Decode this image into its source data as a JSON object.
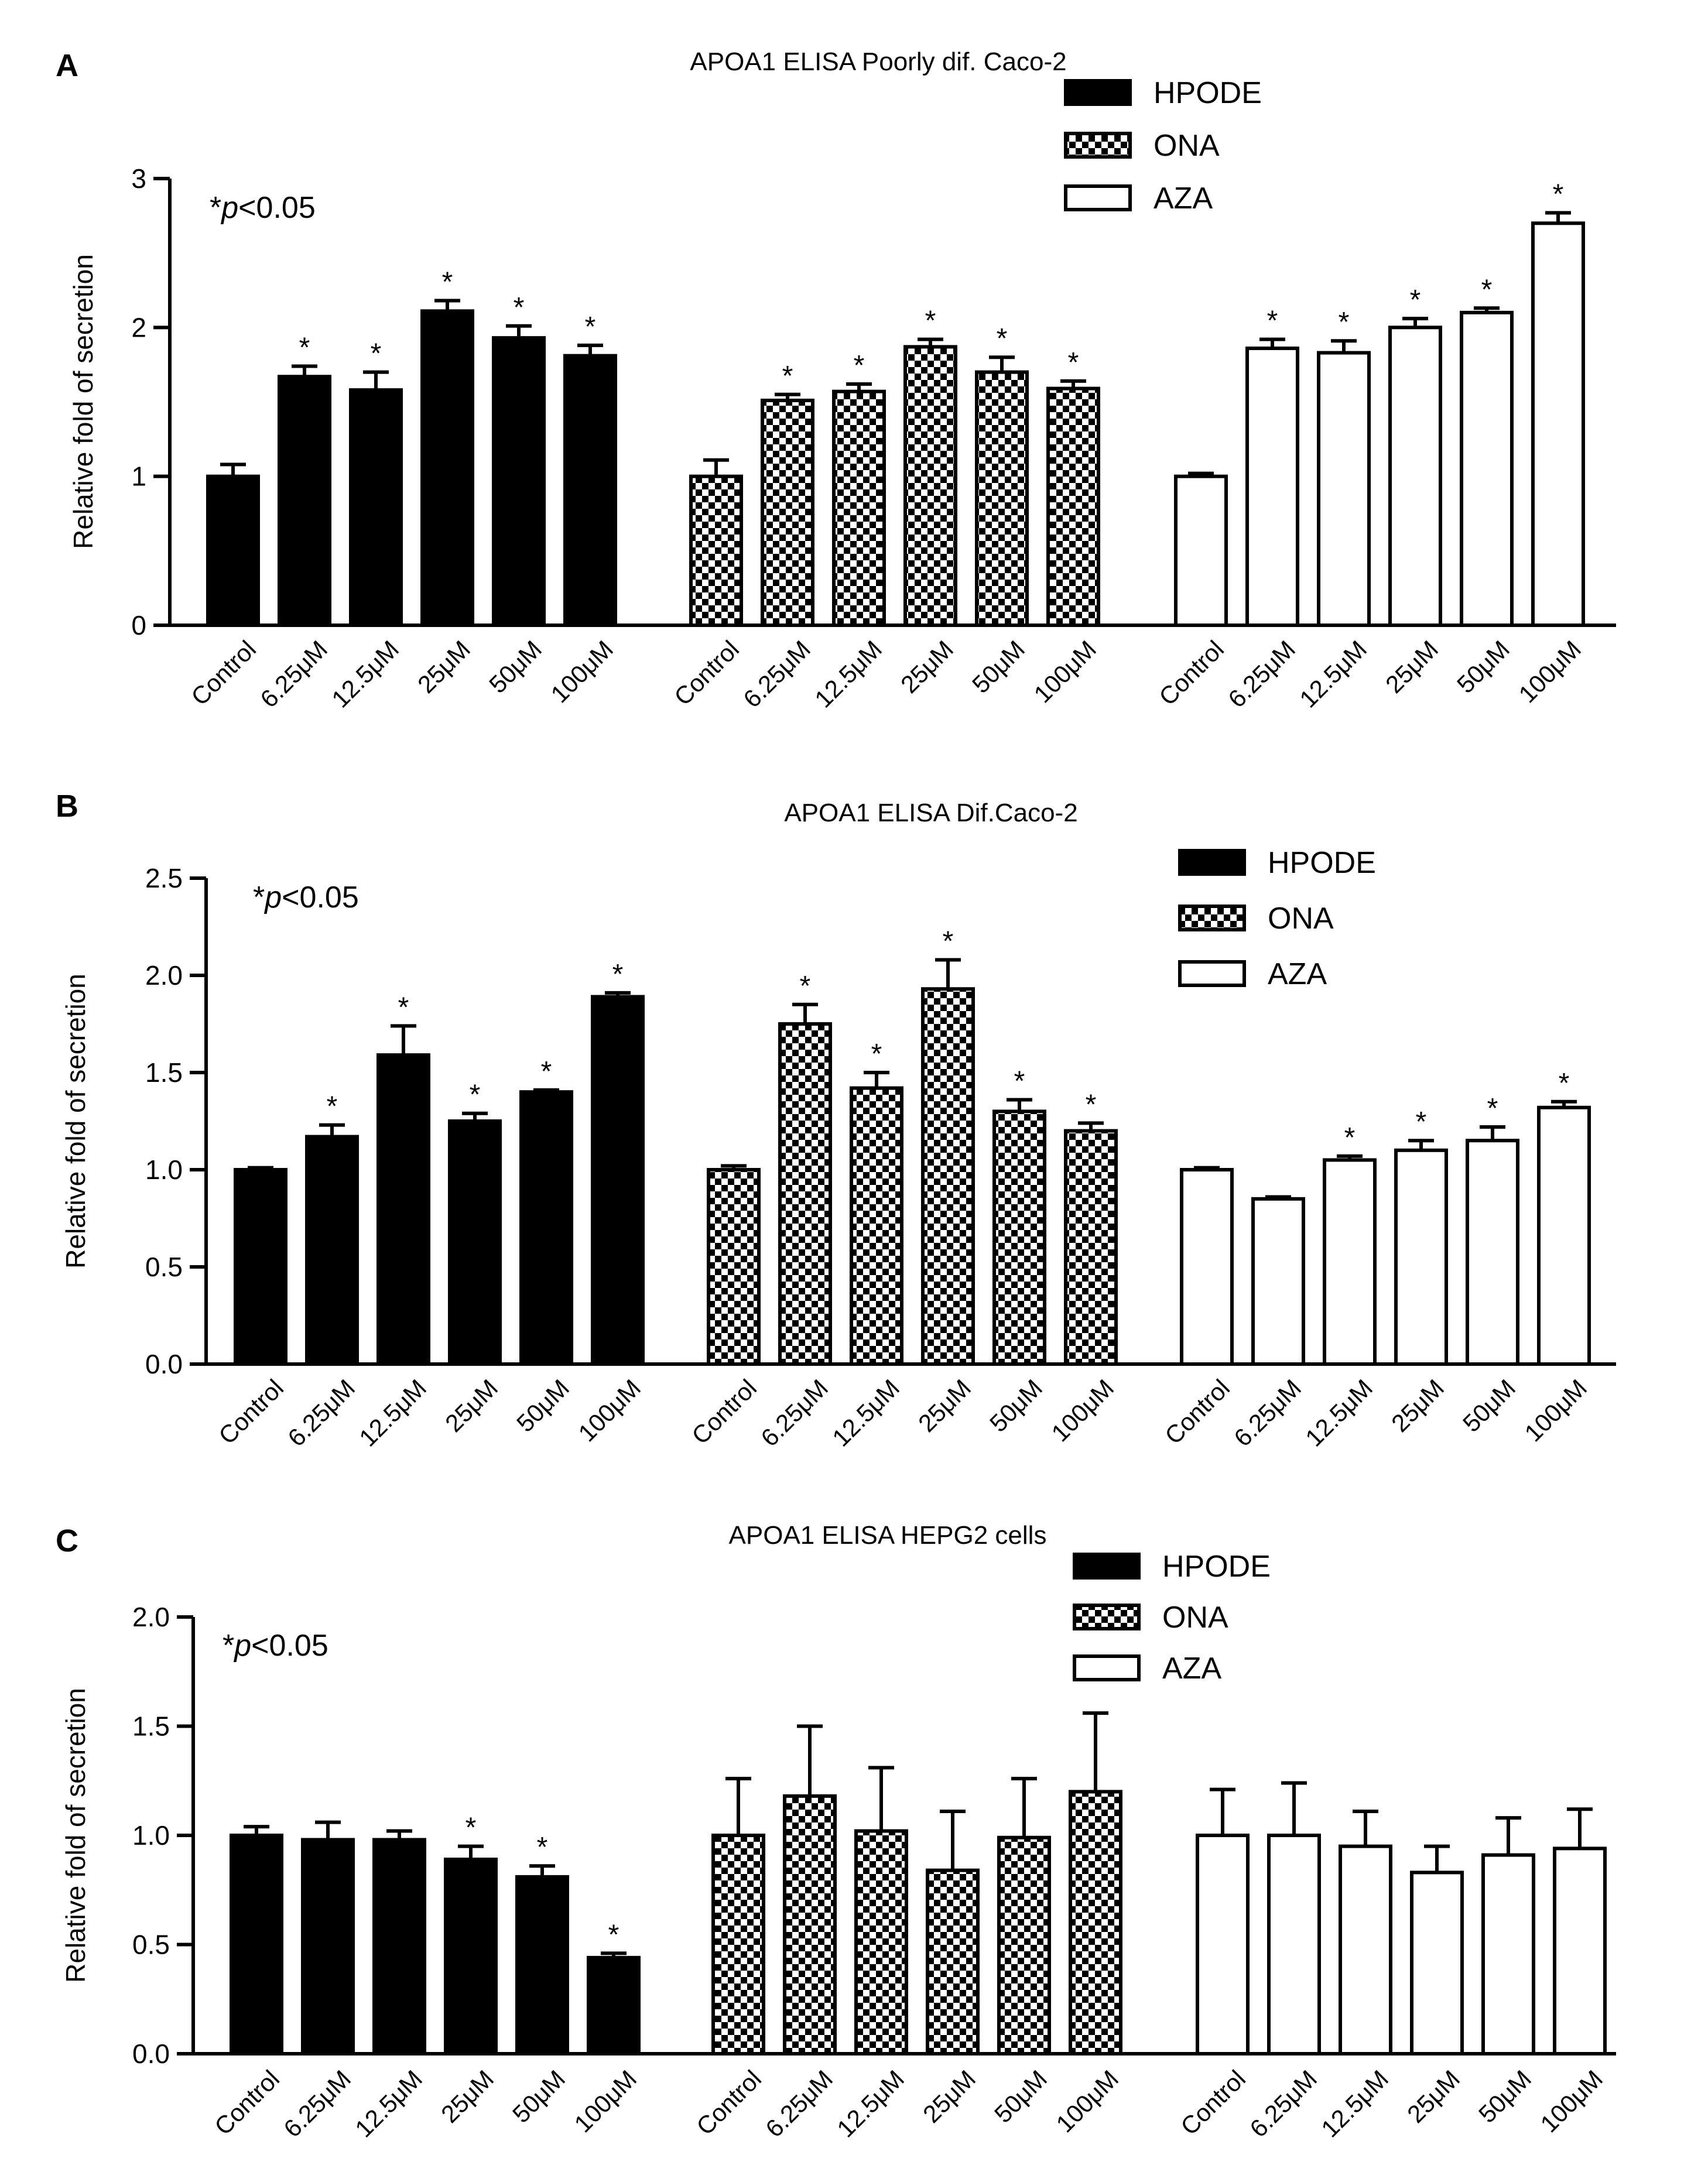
{
  "legend": {
    "items": [
      "HPODE",
      "ONA",
      "AZA"
    ]
  },
  "significance_note": {
    "prefix": "*",
    "italic": "p",
    "suffix": "<0.05"
  },
  "chart_data": [
    {
      "type": "bar",
      "panel_label": "A",
      "title": "APOA1 ELISA Poorly dif. Caco-2",
      "ylabel": "Relative fold of secretion",
      "ylim": [
        0,
        3
      ],
      "yticks": [
        "0",
        "1",
        "2",
        "3"
      ],
      "yticks_values": [
        0,
        1,
        2,
        3
      ],
      "categories": [
        "Control",
        "6.25μM",
        "12.5μM",
        "25μM",
        "50μM",
        "100μM"
      ],
      "series": [
        {
          "name": "HPODE",
          "values": [
            1.0,
            1.67,
            1.58,
            2.11,
            1.93,
            1.81
          ],
          "errors": [
            0.08,
            0.07,
            0.12,
            0.07,
            0.08,
            0.07
          ],
          "significant": [
            false,
            true,
            true,
            true,
            true,
            true
          ]
        },
        {
          "name": "ONA",
          "values": [
            1.0,
            1.51,
            1.57,
            1.87,
            1.7,
            1.59
          ],
          "errors": [
            0.11,
            0.04,
            0.05,
            0.05,
            0.1,
            0.05
          ],
          "significant": [
            false,
            true,
            true,
            true,
            true,
            true
          ]
        },
        {
          "name": "AZA",
          "values": [
            1.0,
            1.86,
            1.83,
            2.0,
            2.1,
            2.7
          ],
          "errors": [
            0.02,
            0.06,
            0.08,
            0.06,
            0.03,
            0.07
          ],
          "significant": [
            false,
            true,
            true,
            true,
            true,
            true
          ]
        }
      ]
    },
    {
      "type": "bar",
      "panel_label": "B",
      "title": "APOA1  ELISA Dif.Caco-2",
      "ylabel": "Relative fold of secretion",
      "ylim": [
        0,
        2.5
      ],
      "yticks": [
        "0.0",
        "0.5",
        "1.0",
        "1.5",
        "2.0",
        "2.5"
      ],
      "yticks_values": [
        0,
        0.5,
        1.0,
        1.5,
        2.0,
        2.5
      ],
      "categories": [
        "Control",
        "6.25μM",
        "12.5μM",
        "25μM",
        "50μM",
        "100μM"
      ],
      "series": [
        {
          "name": "HPODE",
          "values": [
            1.0,
            1.17,
            1.59,
            1.25,
            1.4,
            1.89
          ],
          "errors": [
            0.01,
            0.06,
            0.15,
            0.04,
            0.01,
            0.02
          ],
          "significant": [
            false,
            true,
            true,
            true,
            true,
            true
          ]
        },
        {
          "name": "ONA",
          "values": [
            1.0,
            1.75,
            1.42,
            1.93,
            1.3,
            1.2
          ],
          "errors": [
            0.02,
            0.1,
            0.08,
            0.15,
            0.06,
            0.04
          ],
          "significant": [
            false,
            true,
            true,
            true,
            true,
            true
          ]
        },
        {
          "name": "AZA",
          "values": [
            1.0,
            0.85,
            1.05,
            1.1,
            1.15,
            1.32
          ],
          "errors": [
            0.01,
            0.01,
            0.02,
            0.05,
            0.07,
            0.03
          ],
          "significant": [
            false,
            false,
            true,
            true,
            true,
            true
          ]
        }
      ]
    },
    {
      "type": "bar",
      "panel_label": "C",
      "title": "APOA1  ELISA HEPG2  cells",
      "ylabel": "Relative fold of secretion",
      "ylim": [
        0,
        2.0
      ],
      "yticks": [
        "0.0",
        "0.5",
        "1.0",
        "1.5",
        "2.0"
      ],
      "yticks_values": [
        0,
        0.5,
        1.0,
        1.5,
        2.0
      ],
      "categories": [
        "Control",
        "6.25μM",
        "12.5μM",
        "25μM",
        "50μM",
        "100μM"
      ],
      "series": [
        {
          "name": "HPODE",
          "values": [
            1.0,
            0.98,
            0.98,
            0.89,
            0.81,
            0.44
          ],
          "errors": [
            0.04,
            0.08,
            0.04,
            0.06,
            0.05,
            0.02
          ],
          "significant": [
            false,
            false,
            false,
            true,
            true,
            true
          ]
        },
        {
          "name": "ONA",
          "values": [
            1.0,
            1.18,
            1.02,
            0.84,
            0.99,
            1.2
          ],
          "errors": [
            0.26,
            0.32,
            0.29,
            0.27,
            0.27,
            0.36
          ],
          "significant": [
            false,
            false,
            false,
            false,
            false,
            false
          ]
        },
        {
          "name": "AZA",
          "values": [
            1.0,
            1.0,
            0.95,
            0.83,
            0.91,
            0.94
          ],
          "errors": [
            0.21,
            0.24,
            0.16,
            0.12,
            0.17,
            0.18
          ],
          "significant": [
            false,
            false,
            false,
            false,
            false,
            false
          ]
        }
      ]
    }
  ]
}
